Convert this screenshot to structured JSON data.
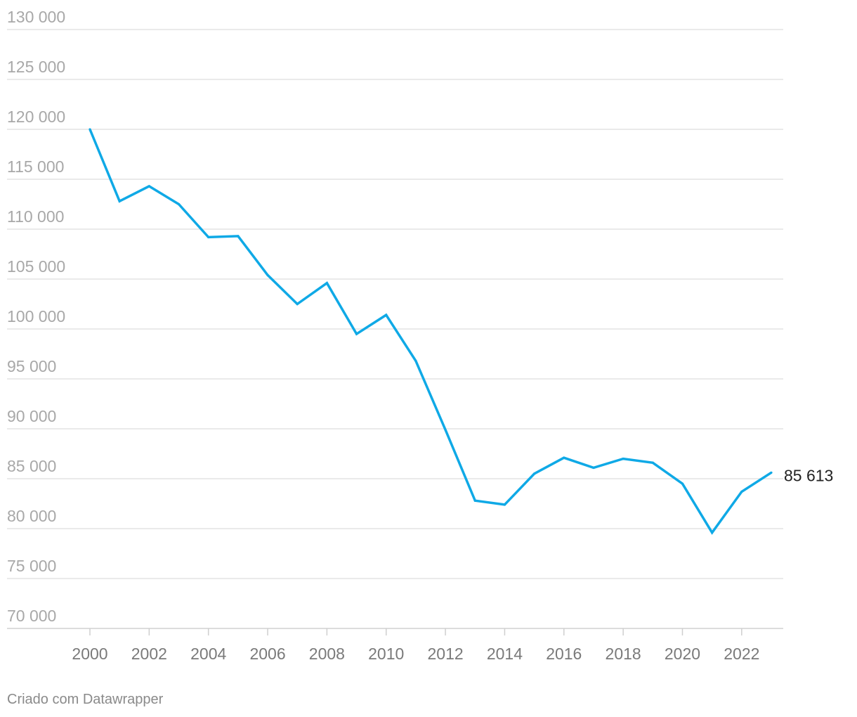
{
  "chart_data": {
    "type": "line",
    "title": "",
    "xlabel": "",
    "ylabel": "",
    "ylim": [
      70000,
      130000
    ],
    "y_ticks": [
      70000,
      75000,
      80000,
      85000,
      90000,
      95000,
      100000,
      105000,
      110000,
      115000,
      120000,
      125000,
      130000
    ],
    "y_tick_labels": [
      "70 000",
      "75 000",
      "80 000",
      "85 000",
      "90 000",
      "95 000",
      "100 000",
      "105 000",
      "110 000",
      "115 000",
      "120 000",
      "125 000",
      "130 000"
    ],
    "x_ticks": [
      2000,
      2002,
      2004,
      2006,
      2008,
      2010,
      2012,
      2014,
      2016,
      2018,
      2020,
      2022
    ],
    "x_tick_labels": [
      "2000",
      "2002",
      "2004",
      "2006",
      "2008",
      "2010",
      "2012",
      "2014",
      "2016",
      "2018",
      "2020",
      "2022"
    ],
    "xlim": [
      2000,
      2023
    ],
    "grid": true,
    "series": [
      {
        "name": "",
        "color": "#0fa9e6",
        "x": [
          2000,
          2001,
          2002,
          2003,
          2004,
          2005,
          2006,
          2007,
          2008,
          2009,
          2010,
          2011,
          2012,
          2013,
          2014,
          2015,
          2016,
          2017,
          2018,
          2019,
          2020,
          2021,
          2022,
          2023
        ],
        "values": [
          120000,
          112800,
          114300,
          112500,
          109200,
          109300,
          105400,
          102500,
          104600,
          99500,
          101400,
          96800,
          89900,
          82800,
          82400,
          85500,
          87100,
          86100,
          87000,
          86600,
          84500,
          79600,
          83700,
          85613
        ]
      }
    ],
    "end_label": "85 613"
  },
  "footer": {
    "credit": "Criado com Datawrapper"
  }
}
